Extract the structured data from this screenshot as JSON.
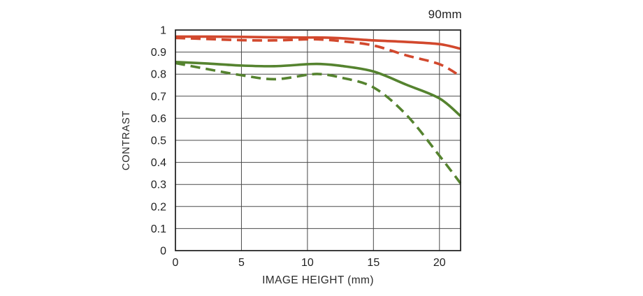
{
  "chart": {
    "title": "90mm",
    "xlabel": "IMAGE HEIGHT (mm)",
    "ylabel": "CONTRAST"
  },
  "chart_data": {
    "type": "line",
    "title": "90mm",
    "xlabel": "IMAGE HEIGHT (mm)",
    "ylabel": "CONTRAST",
    "xlim": [
      0,
      21.6
    ],
    "ylim": [
      0,
      1
    ],
    "grid": true,
    "legend_position": "none",
    "xticks": {
      "values": [
        0,
        5,
        10,
        15,
        20
      ],
      "labels": [
        "0",
        "5",
        "10",
        "15",
        "20"
      ]
    },
    "yticks": {
      "values": [
        0,
        0.1,
        0.2,
        0.3,
        0.4,
        0.5,
        0.6,
        0.7,
        0.8,
        0.9,
        1
      ],
      "labels": [
        "0",
        "0.1",
        "0.2",
        "0.3",
        "0.4",
        "0.5",
        "0.6",
        "0.7",
        "0.8",
        "0.9",
        "1"
      ]
    },
    "x": [
      0,
      2.5,
      5,
      7.5,
      10,
      11,
      12.5,
      15,
      17.5,
      20,
      21.6
    ],
    "series": [
      {
        "name": "red-solid",
        "color": "#d2482d",
        "style": "solid",
        "values": [
          0.97,
          0.97,
          0.969,
          0.967,
          0.966,
          0.966,
          0.963,
          0.953,
          0.946,
          0.936,
          0.915
        ]
      },
      {
        "name": "red-dashed",
        "color": "#d2482d",
        "style": "dashed",
        "values": [
          0.964,
          0.959,
          0.954,
          0.953,
          0.958,
          0.957,
          0.95,
          0.93,
          0.885,
          0.845,
          0.79
        ]
      },
      {
        "name": "green-solid",
        "color": "#55832f",
        "style": "solid",
        "values": [
          0.855,
          0.848,
          0.839,
          0.836,
          0.845,
          0.846,
          0.838,
          0.812,
          0.752,
          0.69,
          0.61
        ]
      },
      {
        "name": "green-dashed",
        "color": "#55832f",
        "style": "dashed",
        "values": [
          0.85,
          0.822,
          0.795,
          0.777,
          0.797,
          0.8,
          0.785,
          0.74,
          0.615,
          0.43,
          0.305
        ]
      }
    ],
    "colors": {
      "red": "#d2482d",
      "green": "#55832f",
      "grid": "#4a4a4a",
      "border": "#1a1a1a",
      "text": "#1f1f1f",
      "background": "#ffffff"
    }
  }
}
